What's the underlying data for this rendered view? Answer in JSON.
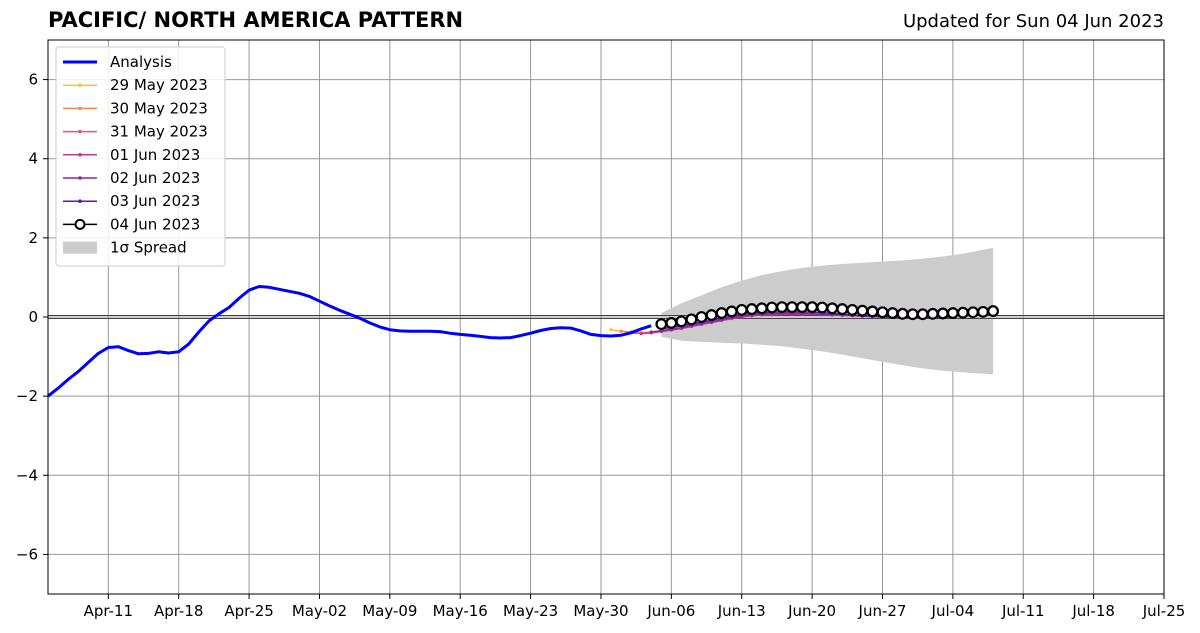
{
  "chart_data": {
    "type": "line",
    "title": "PACIFIC/ NORTH AMERICA PATTERN",
    "subtitle": "Updated for Sun 04 Jun 2023",
    "xlabel": "",
    "ylabel": "",
    "x_ticks": [
      "Apr-11",
      "Apr-18",
      "Apr-25",
      "May-02",
      "May-09",
      "May-16",
      "May-23",
      "May-30",
      "Jun-06",
      "Jun-13",
      "Jun-20",
      "Jun-27",
      "Jul-04",
      "Jul-11",
      "Jul-18",
      "Jul-25"
    ],
    "x_start": "2023-04-05",
    "x_end": "2023-07-25",
    "y_ticks": [
      6,
      4,
      2,
      0,
      -2,
      -4,
      -6
    ],
    "y_tick_labels": [
      "6",
      "4",
      "2",
      "0",
      "−2",
      "−4",
      "−6"
    ],
    "ylim": [
      -7,
      7
    ],
    "grid": true,
    "legend": {
      "placement": "top-left",
      "entries": [
        {
          "label": "Analysis",
          "color": "#0000ff",
          "style": "thick-line"
        },
        {
          "label": "29 May 2023",
          "color": "#fcbc45",
          "style": "dotted-line"
        },
        {
          "label": "30 May 2023",
          "color": "#f08a4b",
          "style": "dotted-line"
        },
        {
          "label": "31 May 2023",
          "color": "#e05a6b",
          "style": "dotted-line"
        },
        {
          "label": "01 Jun 2023",
          "color": "#bf3a8e",
          "style": "dotted-line"
        },
        {
          "label": "02 Jun 2023",
          "color": "#9124a8",
          "style": "dotted-line"
        },
        {
          "label": "03 Jun 2023",
          "color": "#5c189e",
          "style": "dotted-line"
        },
        {
          "label": "04 Jun 2023",
          "color": "#000000",
          "style": "open-circle-line"
        },
        {
          "label": "1σ Spread",
          "color": "#cccccc",
          "style": "patch"
        }
      ]
    },
    "series": [
      {
        "name": "Analysis",
        "color": "#0000ff",
        "x": [
          "2023-04-05",
          "2023-04-06",
          "2023-04-07",
          "2023-04-08",
          "2023-04-09",
          "2023-04-10",
          "2023-04-11",
          "2023-04-12",
          "2023-04-13",
          "2023-04-14",
          "2023-04-15",
          "2023-04-16",
          "2023-04-17",
          "2023-04-18",
          "2023-04-19",
          "2023-04-20",
          "2023-04-21",
          "2023-04-22",
          "2023-04-23",
          "2023-04-24",
          "2023-04-25",
          "2023-04-26",
          "2023-04-27",
          "2023-04-28",
          "2023-04-29",
          "2023-04-30",
          "2023-05-01",
          "2023-05-02",
          "2023-05-03",
          "2023-05-04",
          "2023-05-05",
          "2023-05-06",
          "2023-05-07",
          "2023-05-08",
          "2023-05-09",
          "2023-05-10",
          "2023-05-11",
          "2023-05-12",
          "2023-05-13",
          "2023-05-14",
          "2023-05-15",
          "2023-05-16",
          "2023-05-17",
          "2023-05-18",
          "2023-05-19",
          "2023-05-20",
          "2023-05-21",
          "2023-05-22",
          "2023-05-23",
          "2023-05-24",
          "2023-05-25",
          "2023-05-26",
          "2023-05-27",
          "2023-05-28",
          "2023-05-29",
          "2023-05-30",
          "2023-05-31",
          "2023-06-01",
          "2023-06-02",
          "2023-06-03",
          "2023-06-04"
        ],
        "y": [
          -2.0,
          -1.8,
          -1.58,
          -1.38,
          -1.15,
          -0.92,
          -0.77,
          -0.75,
          -0.85,
          -0.93,
          -0.92,
          -0.88,
          -0.91,
          -0.88,
          -0.68,
          -0.38,
          -0.1,
          0.08,
          0.24,
          0.47,
          0.68,
          0.77,
          0.75,
          0.7,
          0.65,
          0.6,
          0.52,
          0.4,
          0.28,
          0.17,
          0.07,
          -0.03,
          -0.15,
          -0.25,
          -0.32,
          -0.35,
          -0.36,
          -0.36,
          -0.36,
          -0.37,
          -0.41,
          -0.44,
          -0.46,
          -0.49,
          -0.52,
          -0.53,
          -0.52,
          -0.47,
          -0.41,
          -0.34,
          -0.29,
          -0.27,
          -0.28,
          -0.35,
          -0.44,
          -0.47,
          -0.48,
          -0.46,
          -0.4,
          -0.3,
          -0.22
        ]
      },
      {
        "name": "29 May 2023",
        "color": "#fcbc45",
        "x": [
          "2023-05-31",
          "2023-06-01",
          "2023-06-02",
          "2023-06-03",
          "2023-06-04",
          "2023-06-05",
          "2023-06-06",
          "2023-06-07",
          "2023-06-08",
          "2023-06-09",
          "2023-06-10",
          "2023-06-11",
          "2023-06-12",
          "2023-06-13",
          "2023-06-14"
        ],
        "y": [
          -0.32,
          -0.36,
          -0.38,
          -0.4,
          -0.38,
          -0.35,
          -0.3,
          -0.26,
          -0.2,
          -0.15,
          -0.1,
          -0.05,
          0.0,
          0.03,
          0.05
        ]
      },
      {
        "name": "30 May 2023",
        "color": "#f08a4b",
        "x": [
          "2023-06-01",
          "2023-06-02",
          "2023-06-03",
          "2023-06-04",
          "2023-06-05",
          "2023-06-06",
          "2023-06-07",
          "2023-06-08",
          "2023-06-09",
          "2023-06-10",
          "2023-06-11",
          "2023-06-12",
          "2023-06-13",
          "2023-06-14",
          "2023-06-15"
        ],
        "y": [
          -0.36,
          -0.38,
          -0.4,
          -0.38,
          -0.34,
          -0.3,
          -0.25,
          -0.2,
          -0.15,
          -0.1,
          -0.05,
          0.0,
          0.03,
          0.05,
          0.06
        ]
      },
      {
        "name": "31 May 2023",
        "color": "#e05a6b",
        "x": [
          "2023-06-02",
          "2023-06-03",
          "2023-06-04",
          "2023-06-05",
          "2023-06-06",
          "2023-06-07",
          "2023-06-08",
          "2023-06-09",
          "2023-06-10",
          "2023-06-11",
          "2023-06-12",
          "2023-06-13",
          "2023-06-14",
          "2023-06-15",
          "2023-06-16"
        ],
        "y": [
          -0.4,
          -0.42,
          -0.4,
          -0.36,
          -0.32,
          -0.27,
          -0.22,
          -0.17,
          -0.12,
          -0.07,
          -0.02,
          0.02,
          0.05,
          0.07,
          0.08
        ]
      },
      {
        "name": "01 Jun 2023",
        "color": "#bf3a8e",
        "x": [
          "2023-06-03",
          "2023-06-04",
          "2023-06-05",
          "2023-06-06",
          "2023-06-07",
          "2023-06-08",
          "2023-06-09",
          "2023-06-10",
          "2023-06-11",
          "2023-06-12",
          "2023-06-13",
          "2023-06-14",
          "2023-06-15",
          "2023-06-16",
          "2023-06-17",
          "2023-06-18",
          "2023-06-19",
          "2023-06-20",
          "2023-06-21",
          "2023-06-22",
          "2023-06-23",
          "2023-06-24",
          "2023-06-25",
          "2023-06-26",
          "2023-06-27",
          "2023-06-28",
          "2023-06-29",
          "2023-06-30",
          "2023-07-01",
          "2023-07-02"
        ],
        "y": [
          -0.42,
          -0.4,
          -0.37,
          -0.33,
          -0.29,
          -0.24,
          -0.19,
          -0.14,
          -0.09,
          -0.04,
          0.0,
          0.03,
          0.05,
          0.06,
          0.07,
          0.07,
          0.07,
          0.07,
          0.06,
          0.05,
          0.04,
          0.03,
          0.02,
          0.01,
          0.0,
          -0.01,
          -0.02,
          -0.03,
          -0.03,
          -0.03
        ]
      },
      {
        "name": "02 Jun 2023",
        "color": "#9124a8",
        "x": [
          "2023-06-04",
          "2023-06-05",
          "2023-06-06",
          "2023-06-07",
          "2023-06-08",
          "2023-06-09",
          "2023-06-10",
          "2023-06-11",
          "2023-06-12",
          "2023-06-13",
          "2023-06-14",
          "2023-06-15",
          "2023-06-16",
          "2023-06-17",
          "2023-06-18",
          "2023-06-19",
          "2023-06-20",
          "2023-06-21",
          "2023-06-22",
          "2023-06-23",
          "2023-06-24",
          "2023-06-25",
          "2023-06-26",
          "2023-06-27",
          "2023-06-28",
          "2023-06-29",
          "2023-06-30",
          "2023-07-01",
          "2023-07-02",
          "2023-07-03"
        ],
        "y": [
          -0.38,
          -0.35,
          -0.31,
          -0.27,
          -0.22,
          -0.17,
          -0.12,
          -0.07,
          -0.02,
          0.02,
          0.05,
          0.07,
          0.08,
          0.09,
          0.09,
          0.09,
          0.08,
          0.07,
          0.06,
          0.05,
          0.04,
          0.03,
          0.02,
          0.01,
          0.0,
          -0.01,
          -0.02,
          -0.02,
          -0.02,
          -0.02
        ]
      },
      {
        "name": "03 Jun 2023",
        "color": "#5c189e",
        "x": [
          "2023-06-05",
          "2023-06-06",
          "2023-06-07",
          "2023-06-08",
          "2023-06-09",
          "2023-06-10",
          "2023-06-11",
          "2023-06-12",
          "2023-06-13",
          "2023-06-14",
          "2023-06-15",
          "2023-06-16",
          "2023-06-17",
          "2023-06-18",
          "2023-06-19",
          "2023-06-20",
          "2023-06-21",
          "2023-06-22",
          "2023-06-23",
          "2023-06-24",
          "2023-06-25",
          "2023-06-26",
          "2023-06-27",
          "2023-06-28",
          "2023-06-29",
          "2023-06-30",
          "2023-07-01",
          "2023-07-02",
          "2023-07-03",
          "2023-07-04"
        ],
        "y": [
          -0.3,
          -0.26,
          -0.22,
          -0.18,
          -0.13,
          -0.08,
          -0.03,
          0.02,
          0.06,
          0.09,
          0.11,
          0.12,
          0.13,
          0.13,
          0.13,
          0.12,
          0.11,
          0.09,
          0.07,
          0.05,
          0.03,
          0.02,
          0.01,
          0.0,
          -0.01,
          -0.02,
          -0.02,
          -0.02,
          -0.01,
          0.0
        ]
      },
      {
        "name": "04 Jun 2023",
        "color": "#000000",
        "x": [
          "2023-06-05",
          "2023-06-06",
          "2023-06-07",
          "2023-06-08",
          "2023-06-09",
          "2023-06-10",
          "2023-06-11",
          "2023-06-12",
          "2023-06-13",
          "2023-06-14",
          "2023-06-15",
          "2023-06-16",
          "2023-06-17",
          "2023-06-18",
          "2023-06-19",
          "2023-06-20",
          "2023-06-21",
          "2023-06-22",
          "2023-06-23",
          "2023-06-24",
          "2023-06-25",
          "2023-06-26",
          "2023-06-27",
          "2023-06-28",
          "2023-06-29",
          "2023-06-30",
          "2023-07-01",
          "2023-07-02",
          "2023-07-03",
          "2023-07-04",
          "2023-07-05",
          "2023-07-06",
          "2023-07-07",
          "2023-07-08"
        ],
        "y": [
          -0.18,
          -0.15,
          -0.11,
          -0.06,
          0.0,
          0.05,
          0.1,
          0.14,
          0.18,
          0.2,
          0.22,
          0.24,
          0.25,
          0.25,
          0.25,
          0.25,
          0.24,
          0.22,
          0.2,
          0.18,
          0.16,
          0.14,
          0.12,
          0.1,
          0.08,
          0.07,
          0.07,
          0.08,
          0.09,
          0.1,
          0.11,
          0.12,
          0.13,
          0.15
        ]
      }
    ],
    "spread": {
      "name": "1σ Spread",
      "color": "#cccccc",
      "x": [
        "2023-06-05",
        "2023-06-07",
        "2023-06-09",
        "2023-06-11",
        "2023-06-13",
        "2023-06-15",
        "2023-06-17",
        "2023-06-19",
        "2023-06-21",
        "2023-06-23",
        "2023-06-25",
        "2023-06-27",
        "2023-06-29",
        "2023-07-01",
        "2023-07-03",
        "2023-07-05",
        "2023-07-08"
      ],
      "upper": [
        0.1,
        0.35,
        0.55,
        0.75,
        0.92,
        1.06,
        1.16,
        1.24,
        1.3,
        1.34,
        1.37,
        1.4,
        1.43,
        1.47,
        1.53,
        1.6,
        1.75
      ],
      "lower": [
        -0.5,
        -0.6,
        -0.63,
        -0.65,
        -0.67,
        -0.7,
        -0.74,
        -0.8,
        -0.87,
        -0.95,
        -1.04,
        -1.13,
        -1.22,
        -1.3,
        -1.36,
        -1.4,
        -1.45
      ]
    }
  }
}
